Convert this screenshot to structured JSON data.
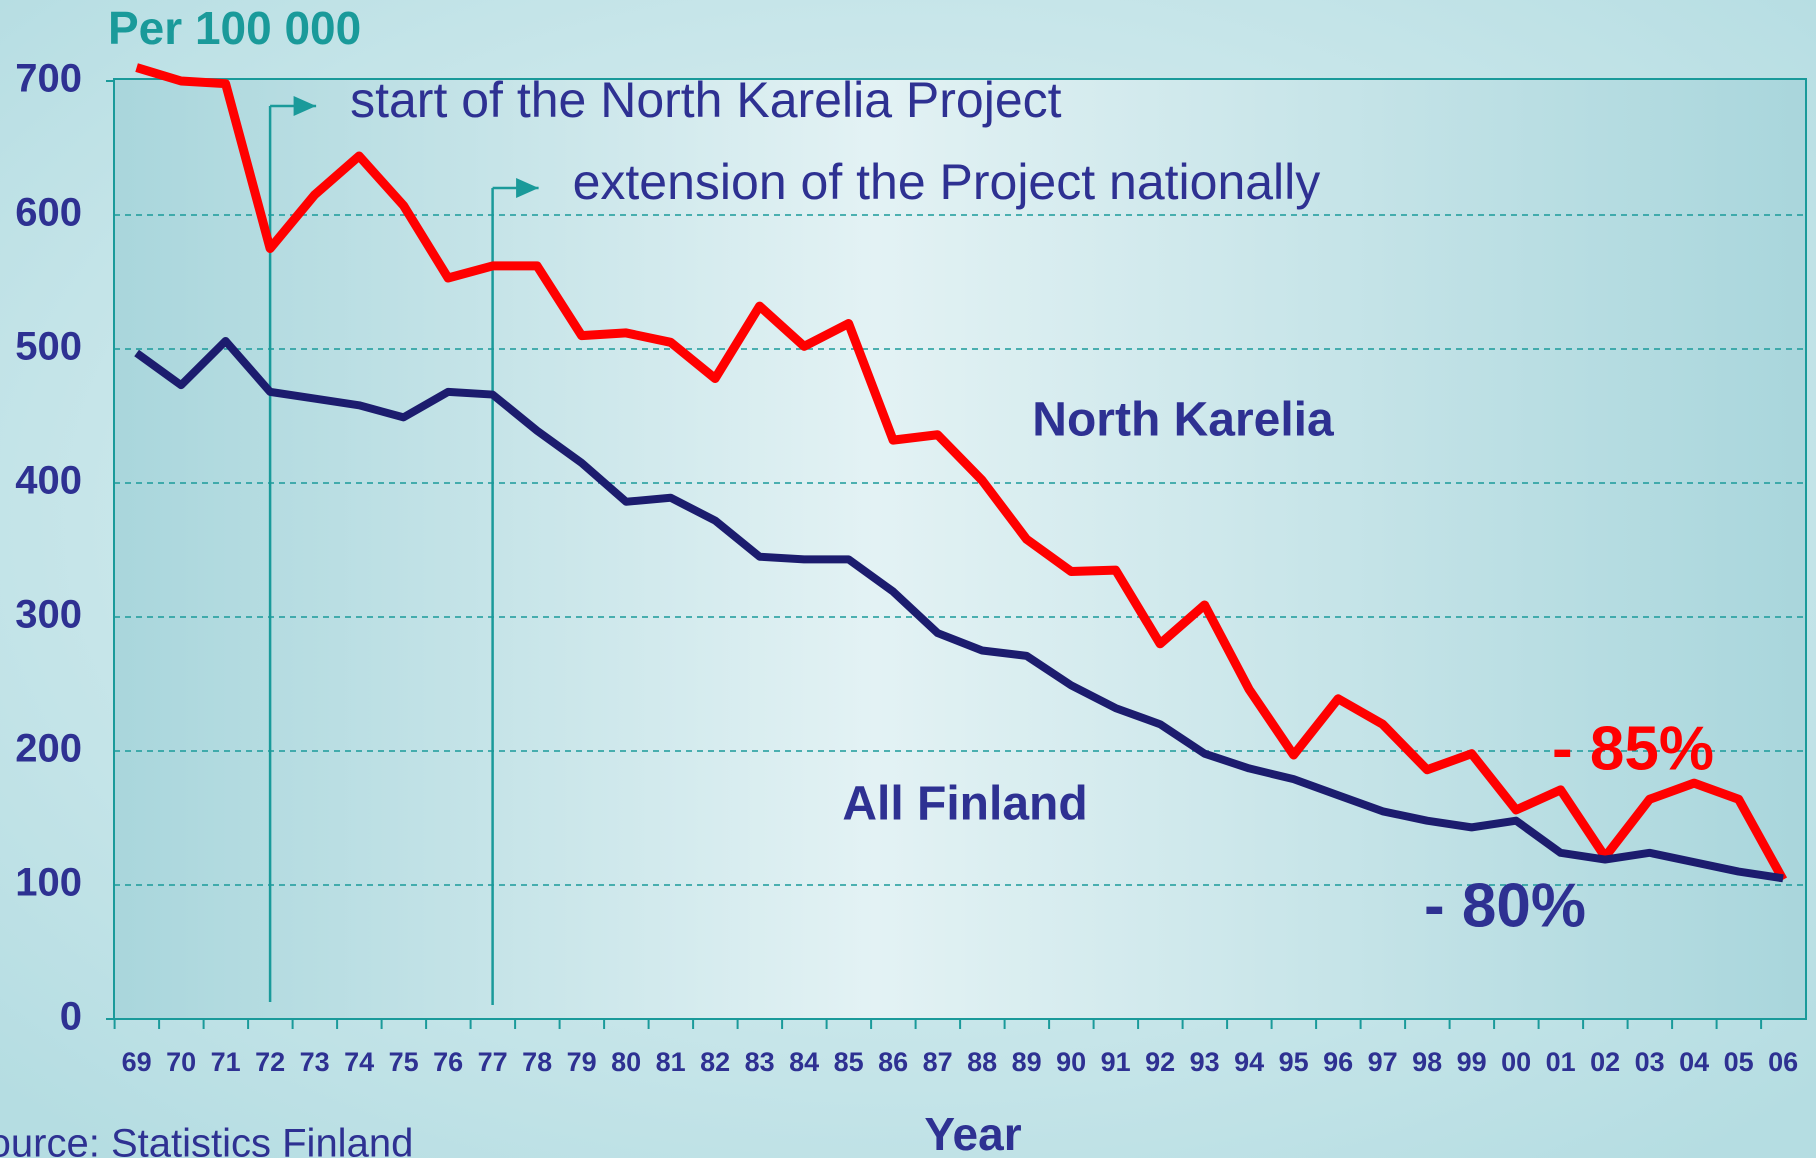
{
  "chart_data": {
    "type": "line",
    "title": "Per 100 000",
    "xlabel": "Year",
    "source": "Source: Statistics Finland",
    "categories": [
      "69",
      "70",
      "71",
      "72",
      "73",
      "74",
      "75",
      "76",
      "77",
      "78",
      "79",
      "80",
      "81",
      "82",
      "83",
      "84",
      "85",
      "86",
      "87",
      "88",
      "89",
      "90",
      "91",
      "92",
      "93",
      "94",
      "95",
      "96",
      "97",
      "98",
      "99",
      "00",
      "01",
      "02",
      "03",
      "04",
      "05",
      "06"
    ],
    "series": [
      {
        "name": "North Karelia",
        "color": "#ff0000",
        "label_color": "#2e3192",
        "change": "- 85%",
        "values": [
          710,
          700,
          698,
          575,
          615,
          644,
          607,
          553,
          562,
          562,
          510,
          512,
          505,
          478,
          532,
          502,
          519,
          432,
          436,
          402,
          358,
          334,
          335,
          280,
          309,
          246,
          197,
          239,
          220,
          186,
          198,
          156,
          171,
          121,
          164,
          176,
          164,
          104
        ]
      },
      {
        "name": "All Finland",
        "color": "#1c1c6e",
        "label_color": "#2e3192",
        "change": "- 80%",
        "values": [
          497,
          473,
          506,
          468,
          463,
          458,
          449,
          468,
          466,
          439,
          415,
          386,
          389,
          372,
          345,
          343,
          343,
          319,
          288,
          275,
          271,
          249,
          232,
          220,
          198,
          187,
          179,
          167,
          155,
          148,
          143,
          148,
          124,
          119,
          124,
          117,
          110,
          105
        ]
      }
    ],
    "annotations": [
      {
        "x": "72",
        "text": "start of the North Karelia Project"
      },
      {
        "x": "77",
        "text": "extension of the Project nationally"
      }
    ],
    "ylim": [
      0,
      700
    ],
    "yticks": [
      0,
      100,
      200,
      300,
      400,
      500,
      600,
      700
    ],
    "grid": true
  }
}
